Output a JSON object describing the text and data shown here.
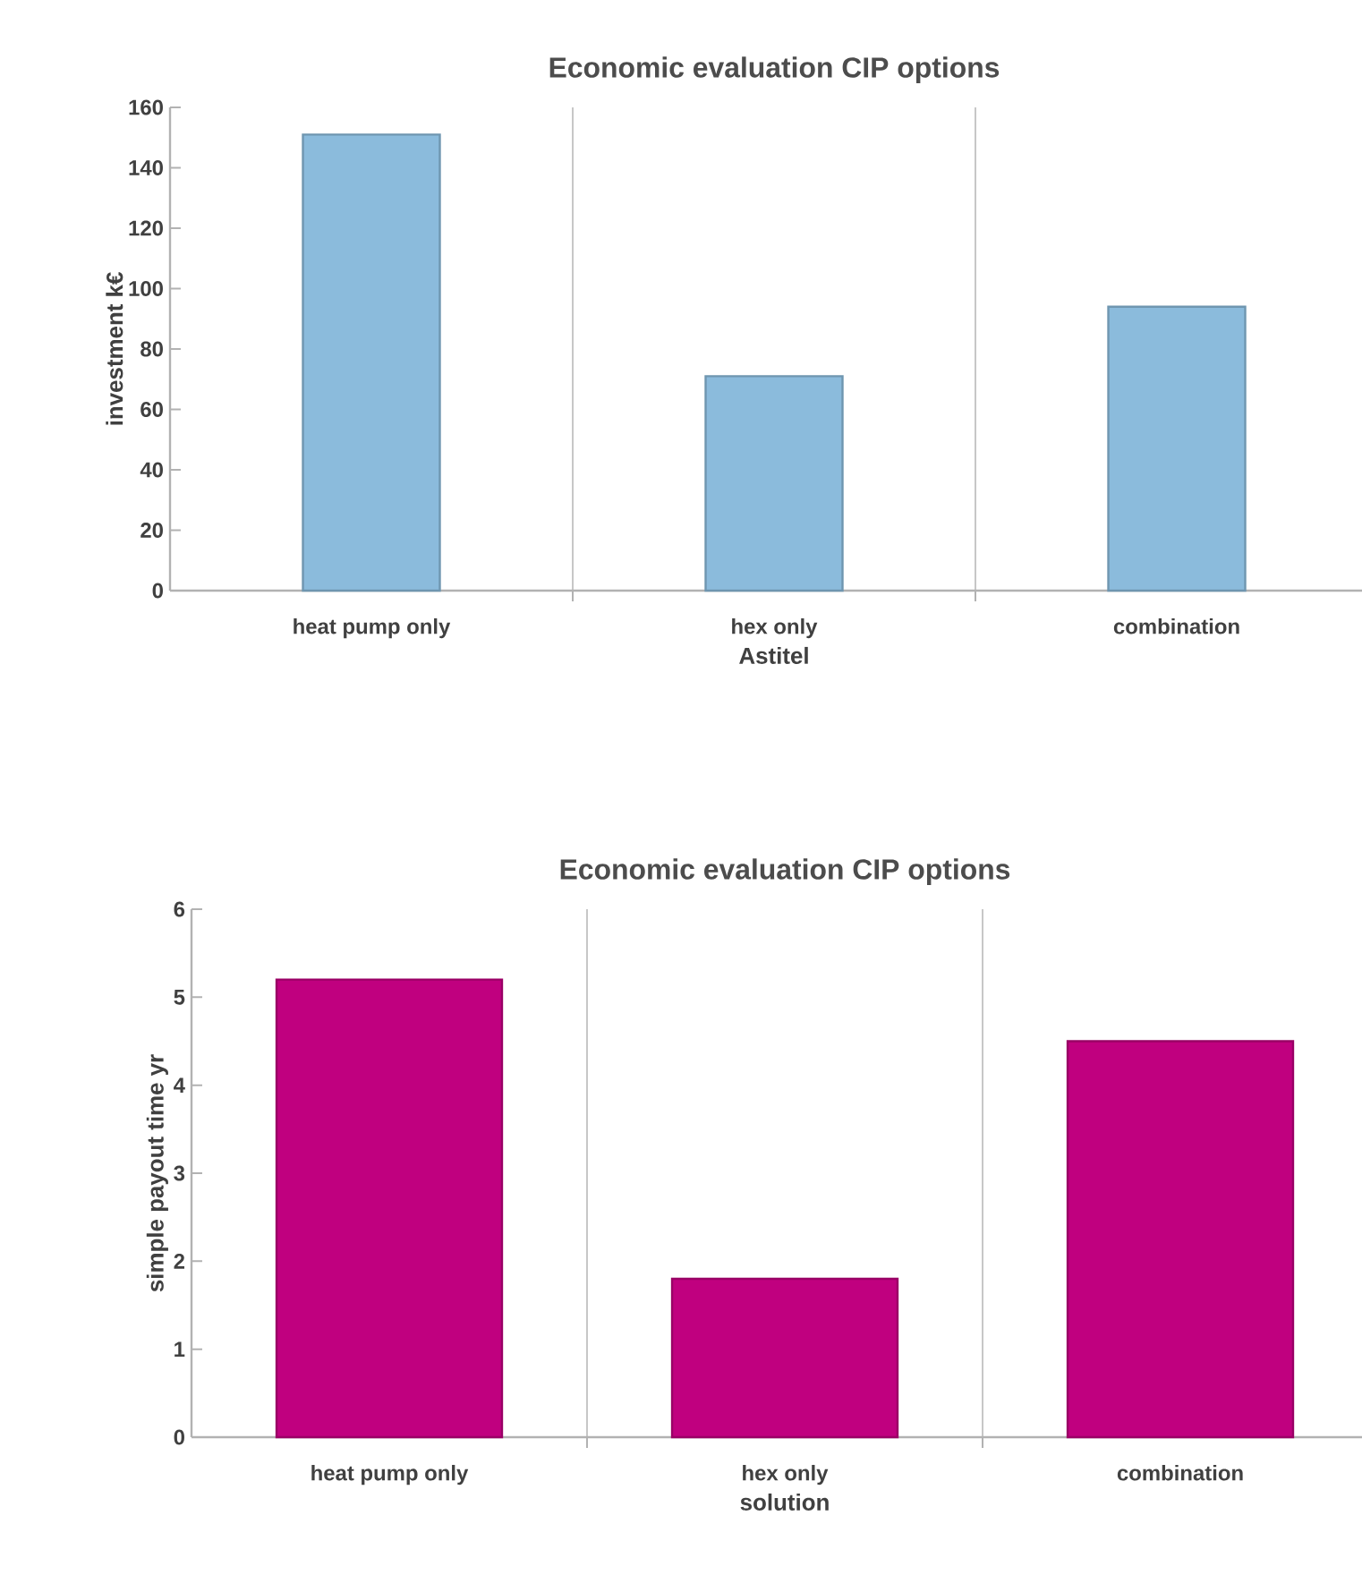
{
  "chart_data": [
    {
      "type": "bar",
      "title": "Economic evaluation CIP options",
      "xlabel": "Astitel",
      "ylabel": "investment  k€",
      "categories": [
        "heat pump only",
        "hex only",
        "combination"
      ],
      "values": [
        151,
        71,
        94
      ],
      "color": "#8bbbdc",
      "ylim": [
        0,
        160
      ],
      "yticks": [
        0,
        20,
        40,
        60,
        80,
        100,
        120,
        140,
        160
      ],
      "grid": "x"
    },
    {
      "type": "bar",
      "title": "Economic evaluation CIP options",
      "xlabel": "solution",
      "ylabel": "simple payout time yr",
      "categories": [
        "heat pump only",
        "hex only",
        "combination"
      ],
      "values": [
        5.2,
        1.8,
        4.5
      ],
      "color": "#c0007f",
      "ylim": [
        0,
        6
      ],
      "yticks": [
        0,
        1,
        2,
        3,
        4,
        5,
        6
      ],
      "grid": "x"
    }
  ]
}
